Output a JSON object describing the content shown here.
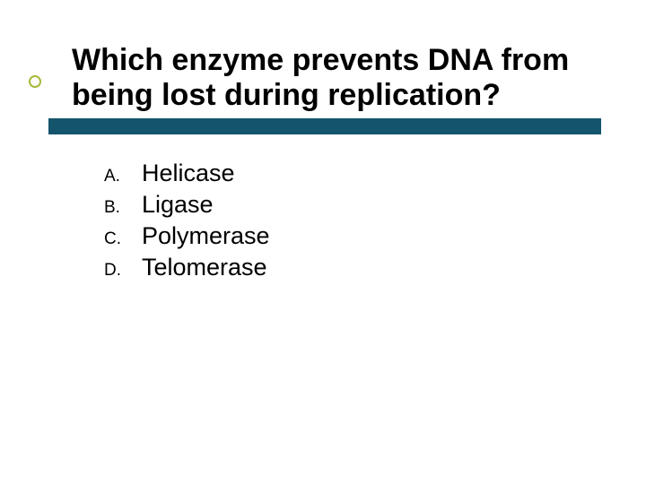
{
  "slide": {
    "title": "Which enzyme prevents DNA from being lost during replication?",
    "title_color": "#000000",
    "title_fontsize": 34,
    "title_fontweight": "bold",
    "bar_color": "#14546c",
    "bullet_ring_color": "#a8b83a",
    "background_color": "#ffffff",
    "options": [
      {
        "letter": "A.",
        "text": "Helicase"
      },
      {
        "letter": "B.",
        "text": "Ligase"
      },
      {
        "letter": "C.",
        "text": "Polymerase"
      },
      {
        "letter": "D.",
        "text": "Telomerase"
      }
    ],
    "option_letter_fontsize": 19,
    "option_text_fontsize": 27,
    "option_color": "#000000"
  }
}
